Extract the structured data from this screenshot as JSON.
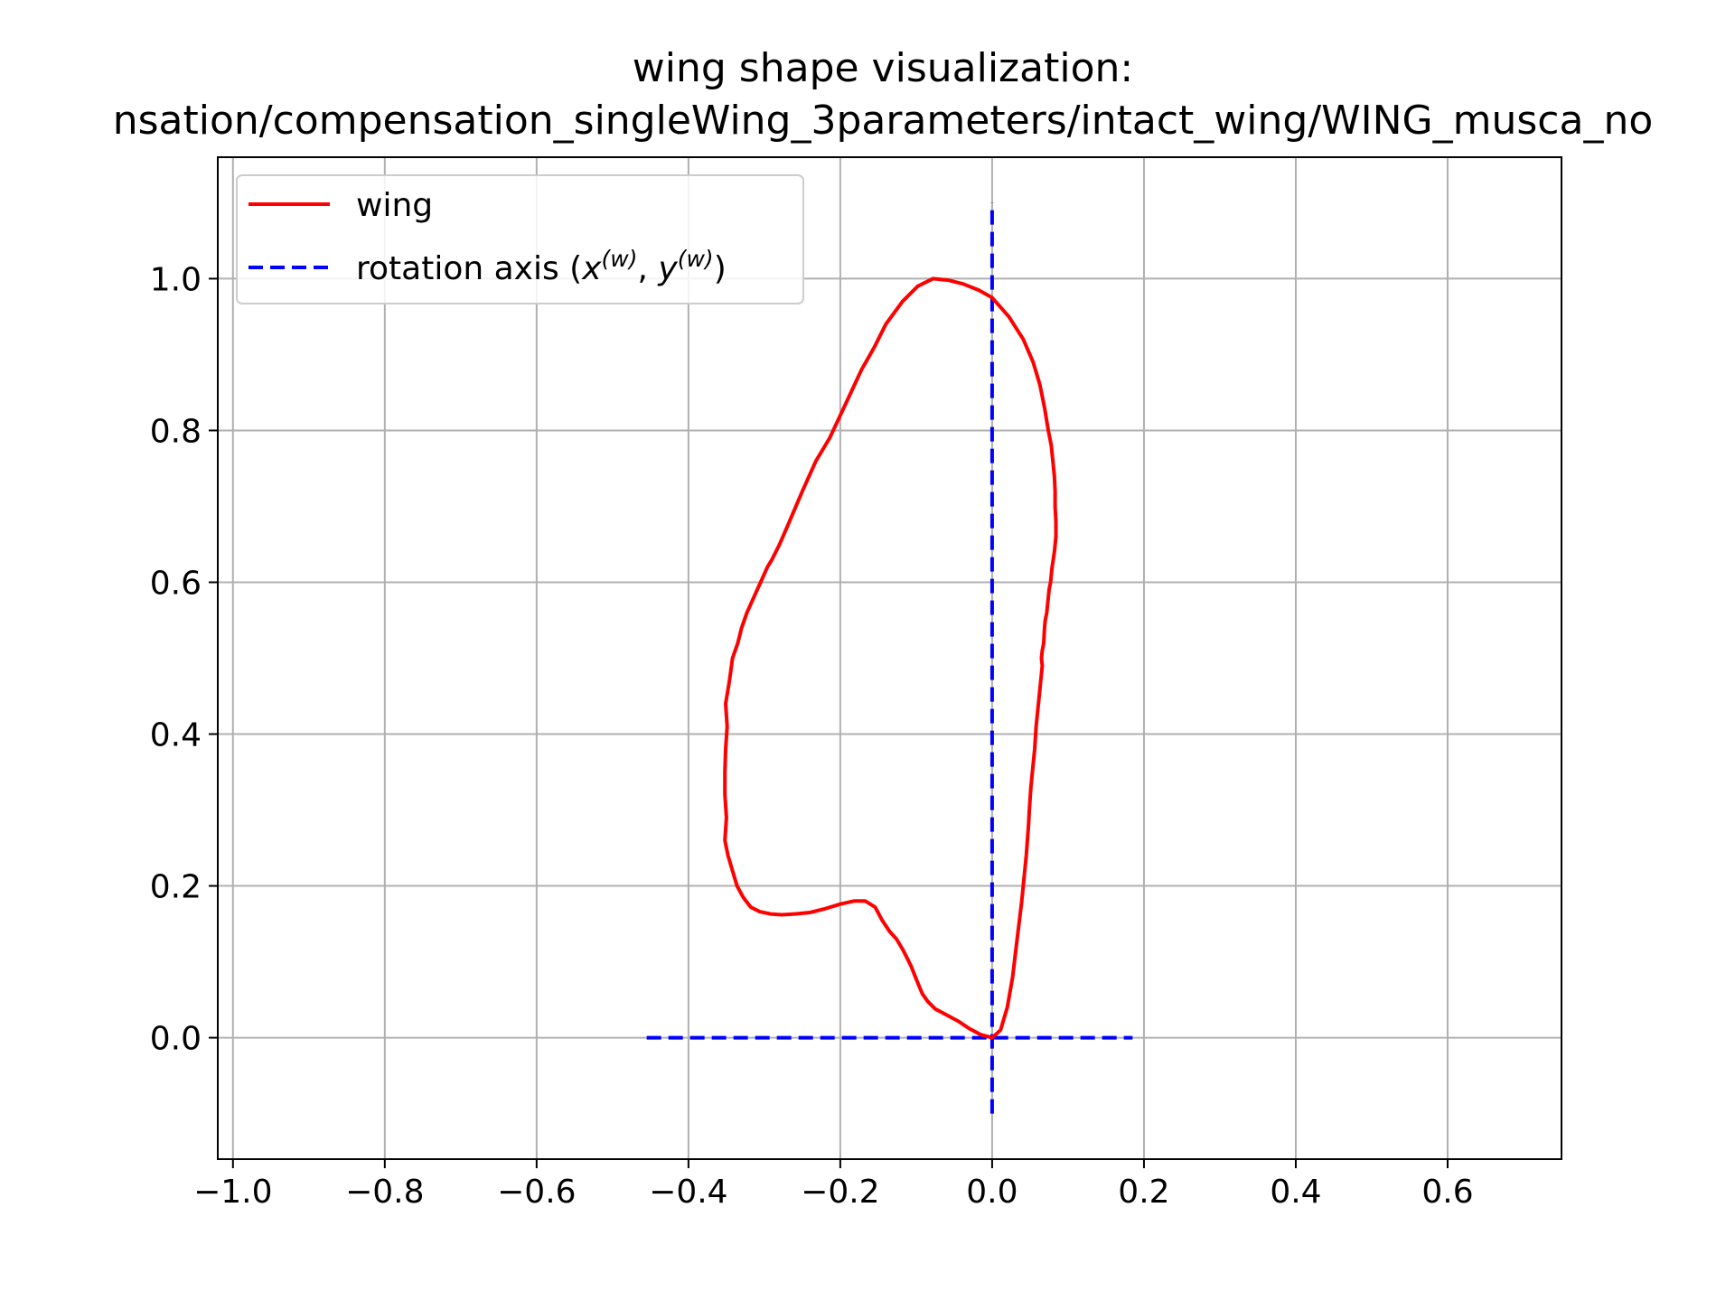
{
  "chart_data": {
    "type": "line",
    "title": "wing shape visualization:",
    "subtitle": "nsation/compensation_singleWing_3parameters/intact_wing/WING_musca_no",
    "xlabel": "",
    "ylabel": "",
    "xlim": [
      -1.02,
      0.75
    ],
    "ylim": [
      -0.16,
      1.16
    ],
    "grid": true,
    "legend_placement": "upper-left",
    "x_ticks": [
      "−1.0",
      "−0.8",
      "−0.6",
      "−0.4",
      "−0.2",
      "0.0",
      "0.2",
      "0.4",
      "0.6"
    ],
    "x_tick_values": [
      -1.0,
      -0.8,
      -0.6,
      -0.4,
      -0.2,
      0.0,
      0.2,
      0.4,
      0.6
    ],
    "y_ticks": [
      "0.0",
      "0.2",
      "0.4",
      "0.6",
      "0.8",
      "1.0"
    ],
    "y_tick_values": [
      0.0,
      0.2,
      0.4,
      0.6,
      0.8,
      1.0
    ],
    "series": [
      {
        "name": "wing",
        "color": "#ff0000",
        "style": "solid",
        "x": [
          0.0,
          0.011,
          0.02,
          0.027,
          0.033,
          0.039,
          0.045,
          0.048,
          0.049,
          0.051,
          0.054,
          0.056,
          0.058,
          0.06,
          0.062,
          0.064,
          0.066,
          0.065,
          0.066,
          0.068,
          0.069,
          0.07,
          0.072,
          0.073,
          0.074,
          0.075,
          0.077,
          0.078,
          0.079,
          0.082,
          0.084,
          0.084,
          0.083,
          0.083,
          0.082,
          0.08,
          0.078,
          0.074,
          0.069,
          0.063,
          0.054,
          0.041,
          0.022,
          0.0,
          -0.018,
          -0.038,
          -0.058,
          -0.078,
          -0.098,
          -0.118,
          -0.14,
          -0.155,
          -0.172,
          -0.186,
          -0.2,
          -0.214,
          -0.232,
          -0.25,
          -0.267,
          -0.28,
          -0.29,
          -0.296,
          -0.305,
          -0.314,
          -0.323,
          -0.33,
          -0.335,
          -0.342,
          -0.346,
          -0.351,
          -0.349,
          -0.351,
          -0.352,
          -0.352,
          -0.35,
          -0.352,
          -0.348,
          -0.342,
          -0.336,
          -0.328,
          -0.318,
          -0.306,
          -0.292,
          -0.277,
          -0.26,
          -0.24,
          -0.22,
          -0.2,
          -0.182,
          -0.167,
          -0.154,
          -0.145,
          -0.135,
          -0.126,
          -0.117,
          -0.107,
          -0.099,
          -0.092,
          -0.085,
          -0.075,
          -0.06,
          -0.045,
          -0.03,
          -0.015,
          0.0
        ],
        "y": [
          0.0,
          0.01,
          0.04,
          0.08,
          0.13,
          0.18,
          0.24,
          0.28,
          0.3,
          0.33,
          0.36,
          0.38,
          0.41,
          0.43,
          0.45,
          0.47,
          0.49,
          0.5,
          0.51,
          0.52,
          0.54,
          0.55,
          0.56,
          0.57,
          0.58,
          0.59,
          0.6,
          0.61,
          0.62,
          0.64,
          0.66,
          0.68,
          0.7,
          0.72,
          0.74,
          0.76,
          0.78,
          0.8,
          0.83,
          0.86,
          0.89,
          0.92,
          0.95,
          0.975,
          0.985,
          0.993,
          0.998,
          1.0,
          0.99,
          0.97,
          0.94,
          0.91,
          0.88,
          0.85,
          0.82,
          0.79,
          0.76,
          0.72,
          0.68,
          0.65,
          0.63,
          0.62,
          0.6,
          0.58,
          0.56,
          0.54,
          0.52,
          0.5,
          0.47,
          0.44,
          0.41,
          0.38,
          0.35,
          0.32,
          0.29,
          0.26,
          0.24,
          0.22,
          0.2,
          0.185,
          0.172,
          0.166,
          0.163,
          0.162,
          0.163,
          0.165,
          0.17,
          0.176,
          0.18,
          0.18,
          0.172,
          0.155,
          0.14,
          0.13,
          0.115,
          0.095,
          0.075,
          0.058,
          0.048,
          0.038,
          0.03,
          0.022,
          0.012,
          0.004,
          0.0
        ]
      },
      {
        "name": "rotation axis (x(w), y(w))",
        "color": "#0000ff",
        "style": "dashed",
        "segments": [
          {
            "x": [
              -0.455,
              0.185
            ],
            "y": [
              0.0,
              0.0
            ]
          },
          {
            "x": [
              0.0,
              0.0
            ],
            "y": [
              -0.1,
              1.1
            ]
          }
        ]
      }
    ]
  },
  "legend": {
    "wing_label": "wing",
    "axis_label_prefix": "rotation axis (",
    "axis_label_x": "x",
    "axis_label_sup": "(w)",
    "axis_label_sep": ", ",
    "axis_label_y": "y",
    "axis_label_suffix": ")"
  }
}
